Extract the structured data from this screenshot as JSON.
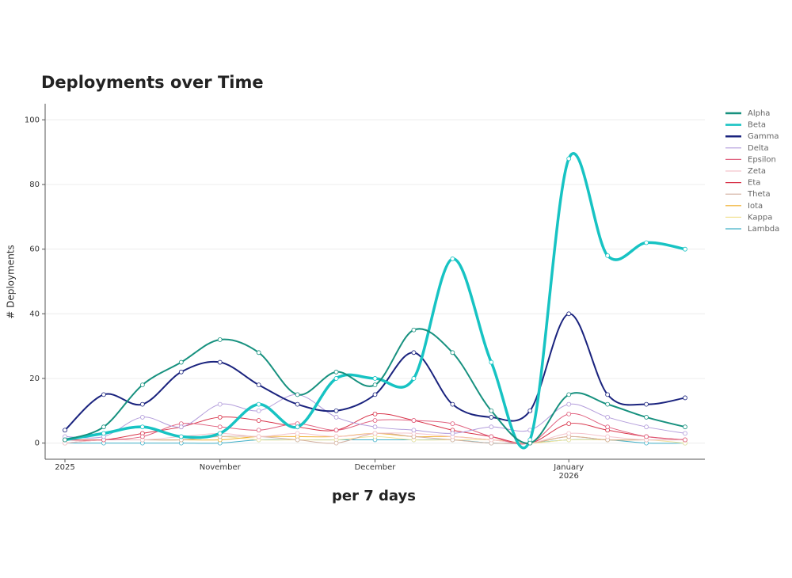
{
  "chart_data": {
    "type": "line",
    "title": "Deployments over Time",
    "x_label": "per 7 days",
    "y_label": "# Deployments",
    "categories": [
      "2025",
      null,
      null,
      null,
      "November",
      null,
      null,
      null,
      "December",
      null,
      null,
      null,
      null,
      "January\n2026",
      null,
      null,
      null
    ],
    "ylim": [
      -5,
      105
    ],
    "yticks": [
      0,
      20,
      40,
      60,
      80,
      100
    ],
    "grid": true,
    "legend": "right",
    "series": [
      {
        "name": "Alpha",
        "color": "#17917f",
        "values": [
          1,
          5,
          18,
          25,
          32,
          28,
          15,
          22,
          18,
          35,
          28,
          10,
          0,
          15,
          12,
          8,
          5
        ]
      },
      {
        "name": "Beta",
        "color": "#17c3c3",
        "values": [
          1,
          3,
          5,
          2,
          3,
          12,
          5,
          20,
          20,
          20,
          57,
          25,
          1,
          88,
          58,
          62,
          60
        ]
      },
      {
        "name": "Gamma",
        "color": "#1a237e",
        "values": [
          4,
          15,
          12,
          22,
          25,
          18,
          12,
          10,
          15,
          28,
          12,
          8,
          10,
          40,
          15,
          12,
          14
        ]
      },
      {
        "name": "Delta",
        "color": "#b39ddb",
        "values": [
          2,
          2,
          8,
          5,
          12,
          10,
          15,
          8,
          5,
          4,
          3,
          5,
          4,
          12,
          8,
          5,
          3
        ]
      },
      {
        "name": "Epsilon",
        "color": "#e0607e",
        "values": [
          1,
          1,
          2,
          6,
          5,
          4,
          6,
          4,
          7,
          7,
          6,
          2,
          0,
          9,
          5,
          2,
          1
        ]
      },
      {
        "name": "Zeta",
        "color": "#f4c4cc",
        "values": [
          0,
          1,
          1,
          2,
          3,
          2,
          3,
          2,
          3,
          3,
          2,
          1,
          0,
          3,
          2,
          1,
          1
        ]
      },
      {
        "name": "Eta",
        "color": "#d8344a",
        "values": [
          1,
          1,
          3,
          5,
          8,
          7,
          5,
          4,
          9,
          7,
          4,
          2,
          0,
          6,
          4,
          2,
          1
        ]
      },
      {
        "name": "Theta",
        "color": "#d4b0a0",
        "values": [
          0,
          1,
          1,
          1,
          2,
          2,
          1,
          0,
          3,
          2,
          1,
          0,
          0,
          2,
          1,
          1,
          1
        ]
      },
      {
        "name": "Iota",
        "color": "#f0b030",
        "values": [
          1,
          1,
          1,
          1,
          1,
          2,
          2,
          2,
          3,
          2,
          2,
          1,
          0,
          2,
          1,
          1,
          1
        ]
      },
      {
        "name": "Kappa",
        "color": "#f2e49a",
        "values": [
          0,
          1,
          1,
          1,
          2,
          1,
          1,
          1,
          2,
          1,
          1,
          1,
          0,
          1,
          1,
          1,
          0
        ]
      },
      {
        "name": "Lambda",
        "color": "#40b0c8",
        "values": [
          0,
          0,
          0,
          0,
          0,
          1,
          1,
          1,
          1,
          1,
          1,
          0,
          0,
          1,
          1,
          0,
          0
        ]
      }
    ]
  }
}
